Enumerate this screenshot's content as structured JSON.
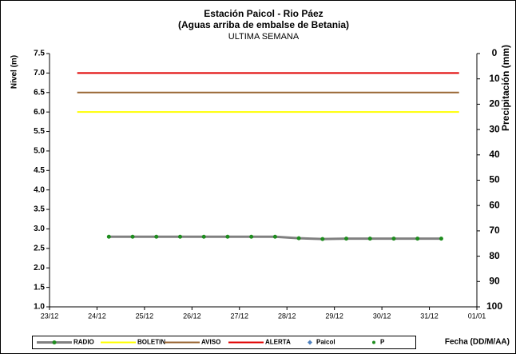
{
  "chart_data": {
    "type": "line",
    "title": "Estación Paicol  - Rio Páez",
    "subtitle": "(Aguas arriba de embalse de Betania)",
    "subtitle2": "ULTIMA SEMANA",
    "ylabel": "Nivel  (m)",
    "y2label": "Precipitación (mm)",
    "xlabel": "Fecha  (DD/M/AA)",
    "xlim": [
      "23/12",
      "01/01"
    ],
    "xticks": [
      "23/12",
      "24/12",
      "25/12",
      "26/12",
      "27/12",
      "28/12",
      "29/12",
      "30/12",
      "31/12",
      "01/01"
    ],
    "ylim": [
      1.0,
      7.5
    ],
    "yticks": [
      {
        "value": 1,
        "label": "1.0"
      },
      1.5,
      {
        "value": 2,
        "label": "2.0"
      },
      2.5,
      {
        "value": 3,
        "label": "3.0"
      },
      3.5,
      {
        "value": 4,
        "label": "4.0"
      },
      4.5,
      {
        "value": 5,
        "label": "5.0"
      },
      5.5,
      {
        "value": 6,
        "label": "6.0"
      },
      6.5,
      {
        "value": 7,
        "label": "7.0"
      },
      7.5
    ],
    "y2lim": [
      0,
      100
    ],
    "y2_inverted": true,
    "y2ticks": [
      0,
      10,
      20,
      30,
      40,
      50,
      60,
      70,
      80,
      90,
      100
    ],
    "grid": false,
    "legend": "bottom",
    "series": [
      {
        "name": "RADIO",
        "style": "line-marker",
        "color": "#808080",
        "marker_color": "#1e8c1e",
        "x": [
          "24/12 06:00",
          "24/12 18:00",
          "25/12 06:00",
          "25/12 18:00",
          "26/12 06:00",
          "26/12 18:00",
          "27/12 06:00",
          "27/12 18:00",
          "28/12 06:00",
          "28/12 18:00",
          "29/12 06:00",
          "29/12 18:00",
          "30/12 06:00",
          "30/12 18:00",
          "31/12 06:00"
        ],
        "values": [
          2.8,
          2.8,
          2.8,
          2.8,
          2.8,
          2.8,
          2.8,
          2.8,
          2.76,
          2.74,
          2.75,
          2.75,
          2.75,
          2.75,
          2.75
        ]
      },
      {
        "name": "BOLETIN",
        "style": "line",
        "color": "#ffff00",
        "x": [
          "23/12 14:00",
          "31/12 15:00"
        ],
        "values": [
          6,
          6
        ]
      },
      {
        "name": "AVISO",
        "style": "line",
        "color": "#996633",
        "x": [
          "23/12 14:00",
          "31/12 15:00"
        ],
        "values": [
          6.5,
          6.5
        ]
      },
      {
        "name": "ALERTA",
        "style": "line",
        "color": "#e00000",
        "x": [
          "23/12 14:00",
          "31/12 15:00"
        ],
        "values": [
          7,
          7
        ]
      },
      {
        "name": "Paicol",
        "style": "diamond",
        "color": "#4f81bd",
        "x": [
          "24/12 06:00"
        ],
        "values": [
          null
        ]
      },
      {
        "name": "P",
        "style": "dot",
        "color": "#1e8c1e",
        "axis": "y2",
        "x": [
          "24/12 06:00"
        ],
        "values": [
          null
        ]
      }
    ]
  }
}
